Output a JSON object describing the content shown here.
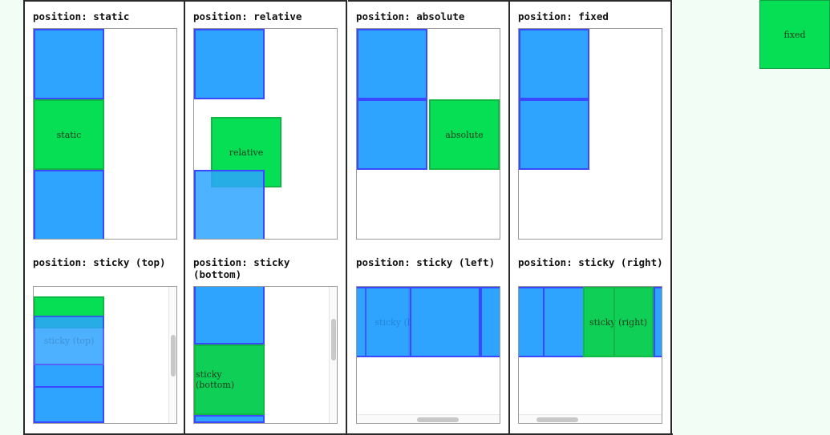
{
  "titles": {
    "static": "position: static",
    "relative": "position: relative",
    "absolute": "position: absolute",
    "fixed": "position: fixed",
    "sticky_top": "position: sticky (top)",
    "sticky_bottom": "position: sticky\n(bottom)",
    "sticky_left": "position: sticky (left)",
    "sticky_right": "position: sticky (right)"
  },
  "labels": {
    "static": "static",
    "relative": "relative",
    "absolute": "absolute",
    "fixed": "fixed",
    "sticky_top": "sticky (top)",
    "sticky_bottom": "sticky (bottom)",
    "sticky_left": "sticky (left)",
    "sticky_right": "sticky (right)"
  },
  "colors": {
    "blue_fill": "#2ea4ff",
    "blue_border": "#3a48ff",
    "green_fill": "#06df54",
    "green_border": "#12b844",
    "page_background": "#f2fdf6"
  }
}
